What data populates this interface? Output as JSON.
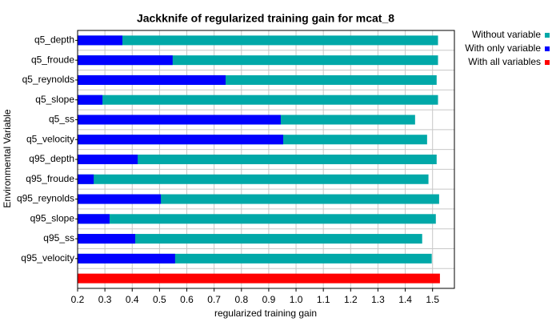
{
  "chart_data": {
    "type": "bar",
    "orientation": "horizontal",
    "title": "Jackknife of regularized training gain for mcat_8",
    "x_label": "regularized training gain",
    "y_label": "Environmental Variable",
    "categories": [
      "q5_depth",
      "q5_froude",
      "q5_reynolds",
      "q5_slope",
      "q5_ss",
      "q5_velocity",
      "q95_depth",
      "q95_froude",
      "q95_reynolds",
      "q95_slope",
      "q95_ss",
      "q95_velocity",
      null
    ],
    "series": [
      {
        "name": "Without variable",
        "color": "#00a8a8",
        "values": [
          1.52,
          1.52,
          1.515,
          1.52,
          1.436,
          1.48,
          1.515,
          1.485,
          1.524,
          1.512,
          1.462,
          1.497,
          null
        ]
      },
      {
        "name": "With only variable",
        "color": "#0000ff",
        "values": [
          0.364,
          0.548,
          0.742,
          0.291,
          0.944,
          0.953,
          0.42,
          0.259,
          0.505,
          0.317,
          0.411,
          0.557,
          null
        ]
      },
      {
        "name": "With all variables",
        "color": "#ff0000",
        "values": [
          null,
          null,
          null,
          null,
          null,
          null,
          null,
          null,
          null,
          null,
          null,
          null,
          1.527
        ]
      }
    ],
    "xlim": [
      0.2,
      1.58
    ],
    "xticks": [
      0.2,
      0.3,
      0.4,
      0.5,
      0.6,
      0.7,
      0.8,
      0.9,
      {
        "value": 1,
        "label": "1.0"
      },
      1.1,
      1.2,
      1.3,
      1.4,
      1.5
    ],
    "grid": true,
    "legend": "top-right"
  }
}
